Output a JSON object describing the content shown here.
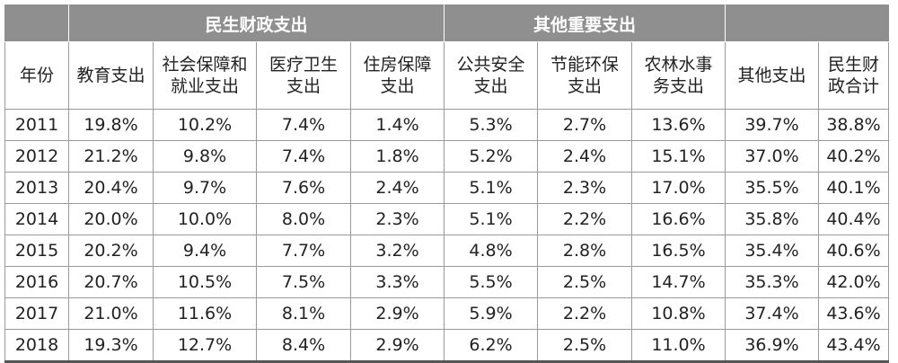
{
  "table": {
    "groups": {
      "livelihood": "民生财政支出",
      "other_important": "其他重要支出"
    },
    "columns": [
      {
        "key": "year",
        "label_lines": [
          "年份"
        ]
      },
      {
        "key": "education",
        "label_lines": [
          "教育支出"
        ]
      },
      {
        "key": "social",
        "label_lines": [
          "社会保障和",
          "就业支出"
        ]
      },
      {
        "key": "medical",
        "label_lines": [
          "医疗卫生",
          "支出"
        ]
      },
      {
        "key": "housing",
        "label_lines": [
          "住房保障",
          "支出"
        ]
      },
      {
        "key": "safety",
        "label_lines": [
          "公共安全",
          "支出"
        ]
      },
      {
        "key": "environment",
        "label_lines": [
          "节能环保",
          "支出"
        ]
      },
      {
        "key": "agriculture",
        "label_lines": [
          "农林水事",
          "务支出"
        ]
      },
      {
        "key": "other",
        "label_lines": [
          "其他支出"
        ]
      },
      {
        "key": "total",
        "label_lines": [
          "民生财",
          "政合计"
        ]
      }
    ],
    "rows": [
      [
        "2011",
        "19.8%",
        "10.2%",
        "7.4%",
        "1.4%",
        "5.3%",
        "2.7%",
        "13.6%",
        "39.7%",
        "38.8%"
      ],
      [
        "2012",
        "21.2%",
        "9.8%",
        "7.4%",
        "1.8%",
        "5.2%",
        "2.4%",
        "15.1%",
        "37.0%",
        "40.2%"
      ],
      [
        "2013",
        "20.4%",
        "9.7%",
        "7.6%",
        "2.4%",
        "5.1%",
        "2.3%",
        "17.0%",
        "35.5%",
        "40.1%"
      ],
      [
        "2014",
        "20.0%",
        "10.0%",
        "8.0%",
        "2.3%",
        "5.1%",
        "2.2%",
        "16.6%",
        "35.8%",
        "40.4%"
      ],
      [
        "2015",
        "20.2%",
        "9.4%",
        "7.7%",
        "3.2%",
        "4.8%",
        "2.8%",
        "16.5%",
        "35.4%",
        "40.6%"
      ],
      [
        "2016",
        "20.7%",
        "10.5%",
        "7.5%",
        "3.3%",
        "5.5%",
        "2.5%",
        "14.7%",
        "35.3%",
        "42.0%"
      ],
      [
        "2017",
        "21.0%",
        "11.6%",
        "8.1%",
        "2.9%",
        "5.9%",
        "2.2%",
        "10.8%",
        "37.4%",
        "43.6%"
      ],
      [
        "2018",
        "19.3%",
        "12.7%",
        "8.4%",
        "2.9%",
        "6.2%",
        "2.5%",
        "11.0%",
        "36.9%",
        "43.4%"
      ]
    ]
  }
}
